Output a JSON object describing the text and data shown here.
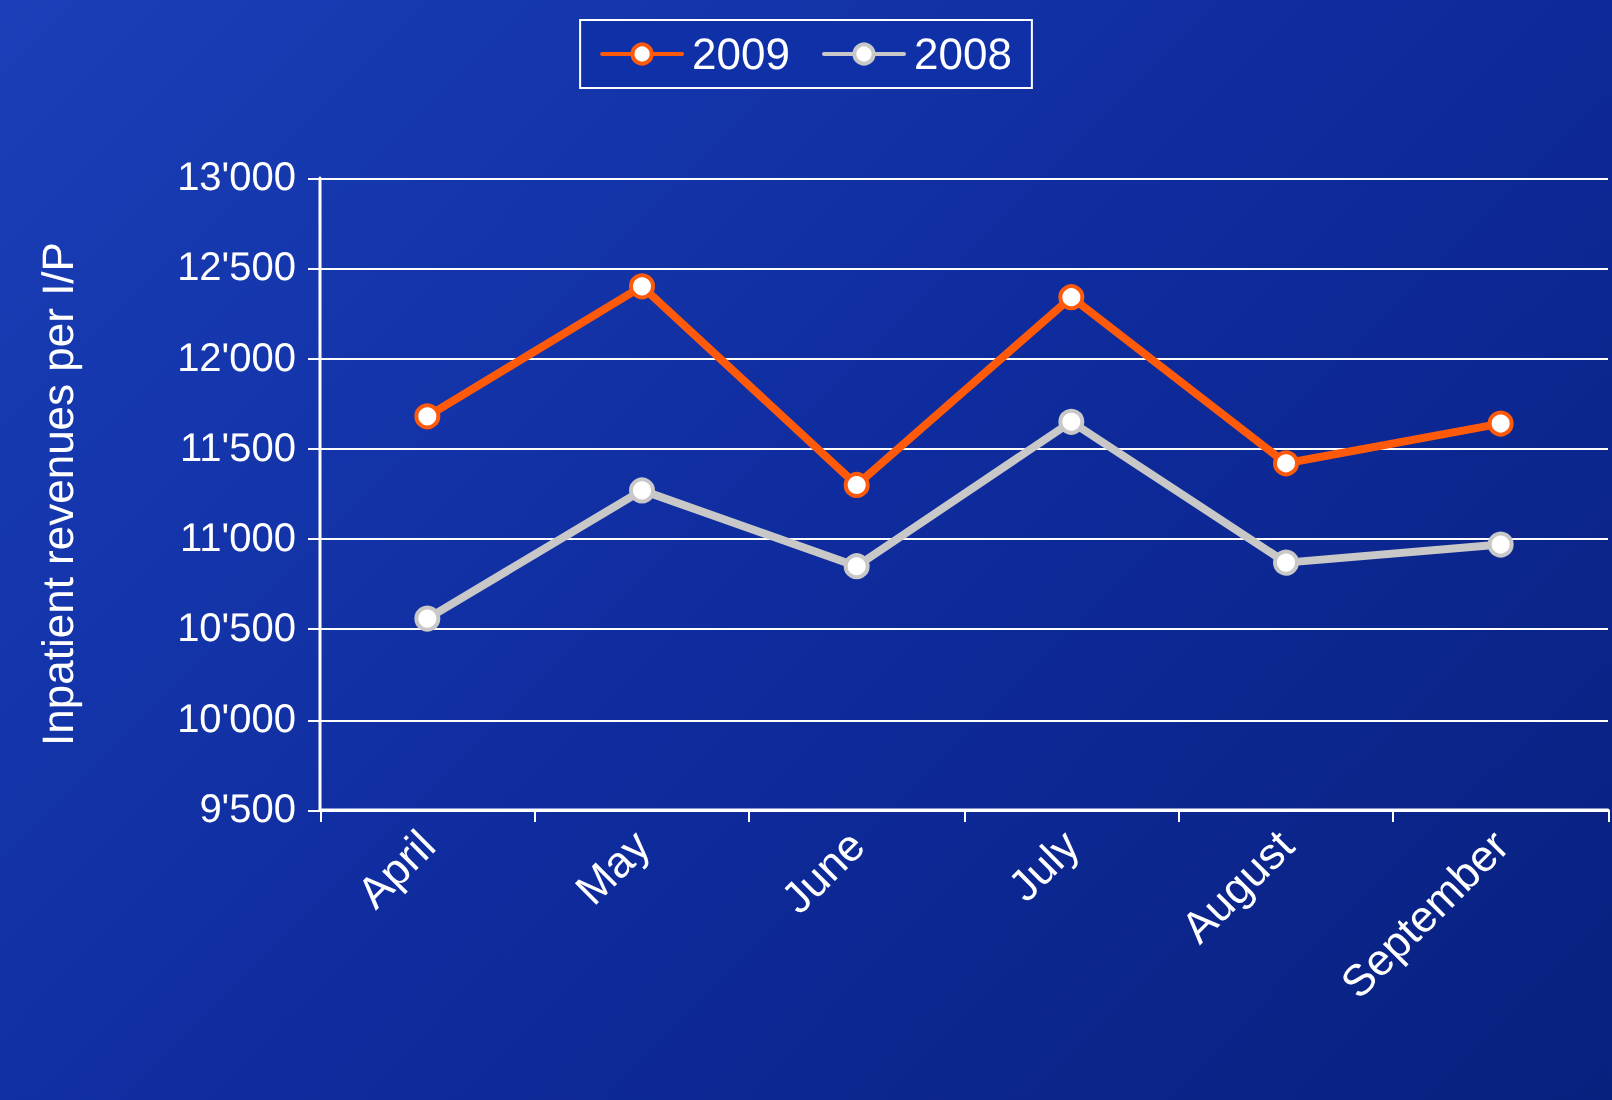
{
  "chart_data": {
    "type": "line",
    "ylabel": "Inpatient revenues per I/P",
    "categories": [
      "April",
      "May",
      "June",
      "July",
      "August",
      "September"
    ],
    "series": [
      {
        "name": "2009",
        "color": "#ff5a0a",
        "values": [
          11680,
          12400,
          11300,
          12340,
          11420,
          11640
        ]
      },
      {
        "name": "2008",
        "color": "#c8c8c8",
        "values": [
          10560,
          11270,
          10850,
          11650,
          10870,
          10970
        ]
      }
    ],
    "ylim": [
      9500,
      13000
    ],
    "yticks": [
      {
        "value": 9500,
        "label": "9'500"
      },
      {
        "value": 10000,
        "label": "10'000"
      },
      {
        "value": 10500,
        "label": "10'500"
      },
      {
        "value": 11000,
        "label": "11'000"
      },
      {
        "value": 11500,
        "label": "11'500"
      },
      {
        "value": 12000,
        "label": "12'000"
      },
      {
        "value": 12500,
        "label": "12'500"
      },
      {
        "value": 13000,
        "label": "13'000"
      }
    ],
    "grid": "y",
    "legend": "top",
    "marker": "circle",
    "line_style": "solid"
  }
}
